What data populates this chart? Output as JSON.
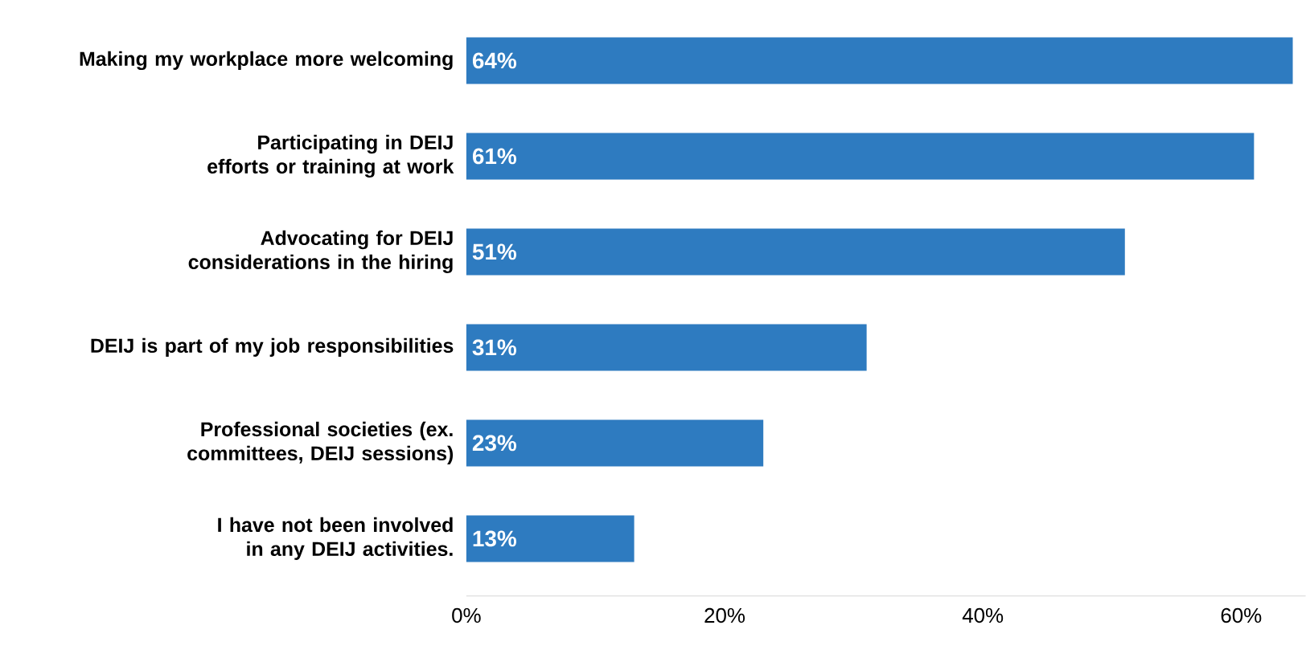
{
  "chart_data": {
    "type": "bar",
    "orientation": "horizontal",
    "categories": [
      "Making my workplace more welcoming",
      "Participating in DEIJ efforts or training at work",
      "Advocating for DEIJ considerations in the hiring",
      "DEIJ is part of my job responsibilities",
      "Professional societies (ex. committees, DEIJ sessions)",
      "I have not been involved in any DEIJ activities."
    ],
    "values": [
      64,
      61,
      51,
      31,
      23,
      13
    ],
    "value_labels": [
      "64%",
      "61%",
      "51%",
      "31%",
      "23%",
      "13%"
    ],
    "color": "#2e7bc0",
    "xlim": [
      0,
      65
    ],
    "xticks": [
      {
        "value": 0,
        "label": "0%"
      },
      {
        "value": 20,
        "label": "20%"
      },
      {
        "value": 40,
        "label": "40%"
      },
      {
        "value": 60,
        "label": "60%"
      }
    ],
    "grid": false
  }
}
